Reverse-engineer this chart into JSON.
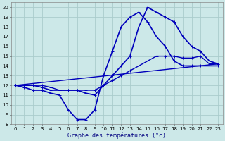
{
  "title": "Graphe des températures (°c)",
  "bg_color": "#cce8e8",
  "grid_color": "#aacccc",
  "line_color": "#0000bb",
  "xlim": [
    -0.5,
    23.5
  ],
  "ylim": [
    8,
    20.5
  ],
  "xticks": [
    0,
    1,
    2,
    3,
    4,
    5,
    6,
    7,
    8,
    9,
    10,
    11,
    12,
    13,
    14,
    15,
    16,
    17,
    18,
    19,
    20,
    21,
    22,
    23
  ],
  "yticks": [
    8,
    9,
    10,
    11,
    12,
    13,
    14,
    15,
    16,
    17,
    18,
    19,
    20
  ],
  "series": [
    {
      "x": [
        0,
        1,
        2,
        3,
        4,
        5,
        6,
        7,
        8,
        9,
        10,
        11,
        12,
        13,
        14,
        15,
        16,
        17,
        18,
        19,
        20,
        21,
        22,
        23
      ],
      "y": [
        12,
        11.8,
        11.5,
        11.5,
        11.2,
        11.0,
        9.5,
        8.5,
        8.5,
        9.5,
        13,
        15.5,
        18,
        19,
        19.5,
        18.5,
        17,
        16,
        14.5,
        14,
        14,
        14,
        14,
        14
      ],
      "marker": true,
      "lw": 1.2
    },
    {
      "x": [
        0,
        1,
        2,
        3,
        4,
        5,
        6,
        7,
        8,
        9,
        10,
        11,
        12,
        13,
        14,
        15,
        16,
        17,
        18,
        19,
        20,
        21,
        22,
        23
      ],
      "y": [
        12,
        12,
        12,
        11.8,
        11.5,
        11.5,
        11.5,
        11.5,
        11.2,
        11.0,
        12,
        13,
        14,
        15,
        18,
        20,
        19.5,
        19,
        18.5,
        17,
        16,
        15.5,
        14.5,
        14.2
      ],
      "marker": true,
      "lw": 1.2
    },
    {
      "x": [
        0,
        23
      ],
      "y": [
        12,
        14.2
      ],
      "marker": false,
      "lw": 1.0
    },
    {
      "x": [
        0,
        1,
        2,
        3,
        4,
        5,
        6,
        7,
        8,
        9,
        10,
        11,
        12,
        13,
        14,
        15,
        16,
        17,
        18,
        19,
        20,
        21,
        22,
        23
      ],
      "y": [
        12,
        12,
        12,
        12,
        11.8,
        11.5,
        11.5,
        11.5,
        11.5,
        11.5,
        12,
        12.5,
        13,
        13.5,
        14,
        14.5,
        15,
        15,
        15,
        14.8,
        14.8,
        15,
        14.2,
        14.2
      ],
      "marker": true,
      "lw": 1.0
    }
  ]
}
